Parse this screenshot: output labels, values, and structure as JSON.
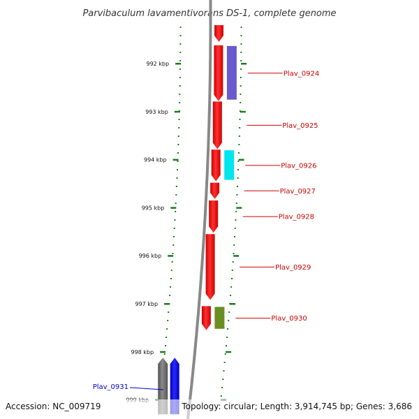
{
  "title": "Parvibaculum lavamentivorans DS-1, complete genome",
  "accession": "Accession: NC_009719",
  "summary": "Topology: circular; Length: 3,914,745 bp; Genes: 3,686",
  "colors": {
    "forward_gene": "#ff0000",
    "reverse_gene": "#0000ff",
    "feature_purple": "#6a5acd",
    "feature_cyan": "#00e5ee",
    "feature_olive": "#6b8e23",
    "backbone": "#888888",
    "ticks": "#1a7a1a",
    "label_forward": "#cc0000",
    "label_reverse": "#0000cc"
  },
  "ticks": [
    {
      "label": "992 kbp",
      "kbp": 992
    },
    {
      "label": "993 kbp",
      "kbp": 993
    },
    {
      "label": "994 kbp",
      "kbp": 994
    },
    {
      "label": "995 kbp",
      "kbp": 995
    },
    {
      "label": "996 kbp",
      "kbp": 996
    },
    {
      "label": "997 kbp",
      "kbp": 997
    },
    {
      "label": "998 kbp",
      "kbp": 998
    },
    {
      "label": "999 kbp",
      "kbp": 999
    }
  ],
  "genes": [
    {
      "name": "Plav_0924",
      "strand": "forward",
      "start_kbp": 991.62,
      "end_kbp": 992.78,
      "feature": "feature_purple"
    },
    {
      "name": "Plav_0925",
      "strand": "forward",
      "start_kbp": 992.79,
      "end_kbp": 993.78,
      "feature": ""
    },
    {
      "name": "Plav_0926",
      "strand": "forward",
      "start_kbp": 993.79,
      "end_kbp": 994.45,
      "feature": "feature_cyan"
    },
    {
      "name": "Plav_0927",
      "strand": "forward",
      "start_kbp": 994.48,
      "end_kbp": 994.82,
      "feature": ""
    },
    {
      "name": "Plav_0928",
      "strand": "forward",
      "start_kbp": 994.85,
      "end_kbp": 995.52,
      "feature": ""
    },
    {
      "name": "Plav_0929",
      "strand": "forward",
      "start_kbp": 995.55,
      "end_kbp": 996.92,
      "feature": ""
    },
    {
      "name": "Plav_0930",
      "strand": "forward",
      "start_kbp": 997.05,
      "end_kbp": 997.55,
      "feature": "feature_olive"
    },
    {
      "name": "Plav_0931",
      "strand": "reverse",
      "start_kbp": 998.12,
      "end_kbp": 999.3,
      "feature": ""
    }
  ],
  "extra_genes": [
    {
      "strand": "forward",
      "start_kbp": 991.2,
      "end_kbp": 991.55
    },
    {
      "strand": "reverse_grey",
      "start_kbp": 998.12,
      "end_kbp": 999.3
    }
  ]
}
